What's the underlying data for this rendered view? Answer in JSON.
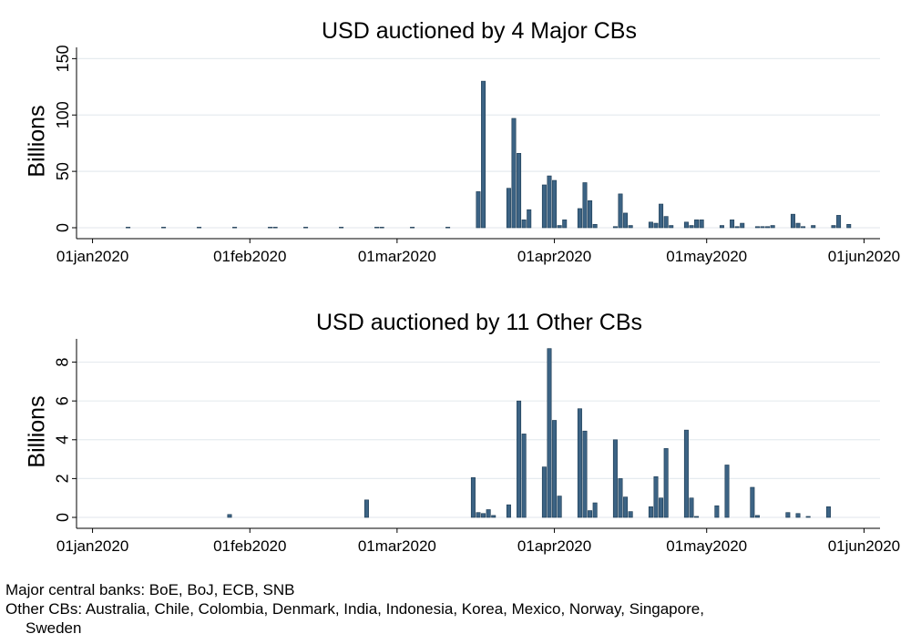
{
  "chart_data": [
    {
      "type": "bar",
      "title": "USD auctioned by 4 Major CBs",
      "xlabel": "",
      "ylabel": "Billions",
      "xlim": [
        "2019-12-31",
        "2020-06-02"
      ],
      "ylim": [
        0,
        160
      ],
      "yticks": [
        0,
        50,
        100,
        150
      ],
      "xticks": [
        "2020-01-01",
        "2020-02-01",
        "2020-03-01",
        "2020-04-01",
        "2020-05-01",
        "2020-06-01"
      ],
      "xtick_labels": [
        "01jan2020",
        "01feb2020",
        "01mar2020",
        "01apr2020",
        "01may2020",
        "01jun2020"
      ],
      "grid": true,
      "bar_color": "#3c6384",
      "series": [
        {
          "x": [
            "2020-01-08",
            "2020-01-15",
            "2020-01-22",
            "2020-01-29",
            "2020-02-05",
            "2020-02-06",
            "2020-02-12",
            "2020-02-19",
            "2020-02-26",
            "2020-02-27",
            "2020-03-04",
            "2020-03-11",
            "2020-03-17",
            "2020-03-18",
            "2020-03-23",
            "2020-03-24",
            "2020-03-25",
            "2020-03-26",
            "2020-03-27",
            "2020-03-30",
            "2020-03-31",
            "2020-04-01",
            "2020-04-02",
            "2020-04-03",
            "2020-04-06",
            "2020-04-07",
            "2020-04-08",
            "2020-04-09",
            "2020-04-13",
            "2020-04-14",
            "2020-04-15",
            "2020-04-16",
            "2020-04-20",
            "2020-04-21",
            "2020-04-22",
            "2020-04-23",
            "2020-04-24",
            "2020-04-27",
            "2020-04-28",
            "2020-04-29",
            "2020-04-30",
            "2020-05-04",
            "2020-05-06",
            "2020-05-07",
            "2020-05-08",
            "2020-05-11",
            "2020-05-12",
            "2020-05-13",
            "2020-05-14",
            "2020-05-18",
            "2020-05-19",
            "2020-05-20",
            "2020-05-22",
            "2020-05-26",
            "2020-05-27",
            "2020-05-29"
          ],
          "values": [
            0.5,
            0.5,
            0.5,
            0.5,
            0.5,
            0.5,
            0.5,
            0.5,
            0.5,
            0.5,
            0.5,
            0.5,
            32,
            130,
            35,
            97,
            66,
            7,
            16,
            38,
            46,
            42,
            2,
            7,
            17,
            40,
            24,
            3,
            1,
            30,
            13,
            2,
            5,
            4,
            21,
            10,
            2,
            5,
            2,
            7,
            7,
            2,
            7,
            1,
            4,
            1,
            1,
            1,
            2,
            12,
            4,
            1,
            2,
            2,
            11,
            3
          ]
        }
      ]
    },
    {
      "type": "bar",
      "title": "USD auctioned by 11 Other CBs",
      "xlabel": "",
      "ylabel": "Billions",
      "xlim": [
        "2019-12-31",
        "2020-06-02"
      ],
      "ylim": [
        0,
        9.2
      ],
      "yticks": [
        0,
        2,
        4,
        6,
        8
      ],
      "xticks": [
        "2020-01-01",
        "2020-02-01",
        "2020-03-01",
        "2020-04-01",
        "2020-05-01",
        "2020-06-01"
      ],
      "xtick_labels": [
        "01jan2020",
        "01feb2020",
        "01mar2020",
        "01apr2020",
        "01may2020",
        "01jun2020"
      ],
      "grid": true,
      "bar_color": "#3c6384",
      "series": [
        {
          "x": [
            "2020-01-28",
            "2020-02-24",
            "2020-03-16",
            "2020-03-17",
            "2020-03-18",
            "2020-03-19",
            "2020-03-20",
            "2020-03-23",
            "2020-03-25",
            "2020-03-26",
            "2020-03-30",
            "2020-03-31",
            "2020-04-01",
            "2020-04-02",
            "2020-04-06",
            "2020-04-07",
            "2020-04-08",
            "2020-04-09",
            "2020-04-13",
            "2020-04-14",
            "2020-04-15",
            "2020-04-16",
            "2020-04-20",
            "2020-04-21",
            "2020-04-22",
            "2020-04-23",
            "2020-04-27",
            "2020-04-28",
            "2020-04-29",
            "2020-05-03",
            "2020-05-05",
            "2020-05-10",
            "2020-05-11",
            "2020-05-17",
            "2020-05-19",
            "2020-05-21",
            "2020-05-25"
          ],
          "values": [
            0.15,
            0.9,
            2.05,
            0.25,
            0.2,
            0.4,
            0.1,
            0.65,
            6.0,
            4.3,
            2.6,
            8.7,
            5.0,
            1.1,
            5.6,
            4.45,
            0.35,
            0.75,
            4.0,
            2.0,
            1.05,
            0.3,
            0.55,
            2.1,
            1.0,
            3.55,
            4.5,
            1.0,
            0.05,
            0.6,
            2.7,
            1.55,
            0.1,
            0.25,
            0.2,
            0.05,
            0.55
          ]
        }
      ]
    }
  ],
  "footnotes": {
    "major": "Major central banks: BoE, BoJ, ECB, SNB",
    "other_line1": "Other CBs: Australia, Chile, Colombia, Denmark, India, Indonesia, Korea, Mexico, Norway, Singapore,",
    "other_line2": "Sweden"
  }
}
